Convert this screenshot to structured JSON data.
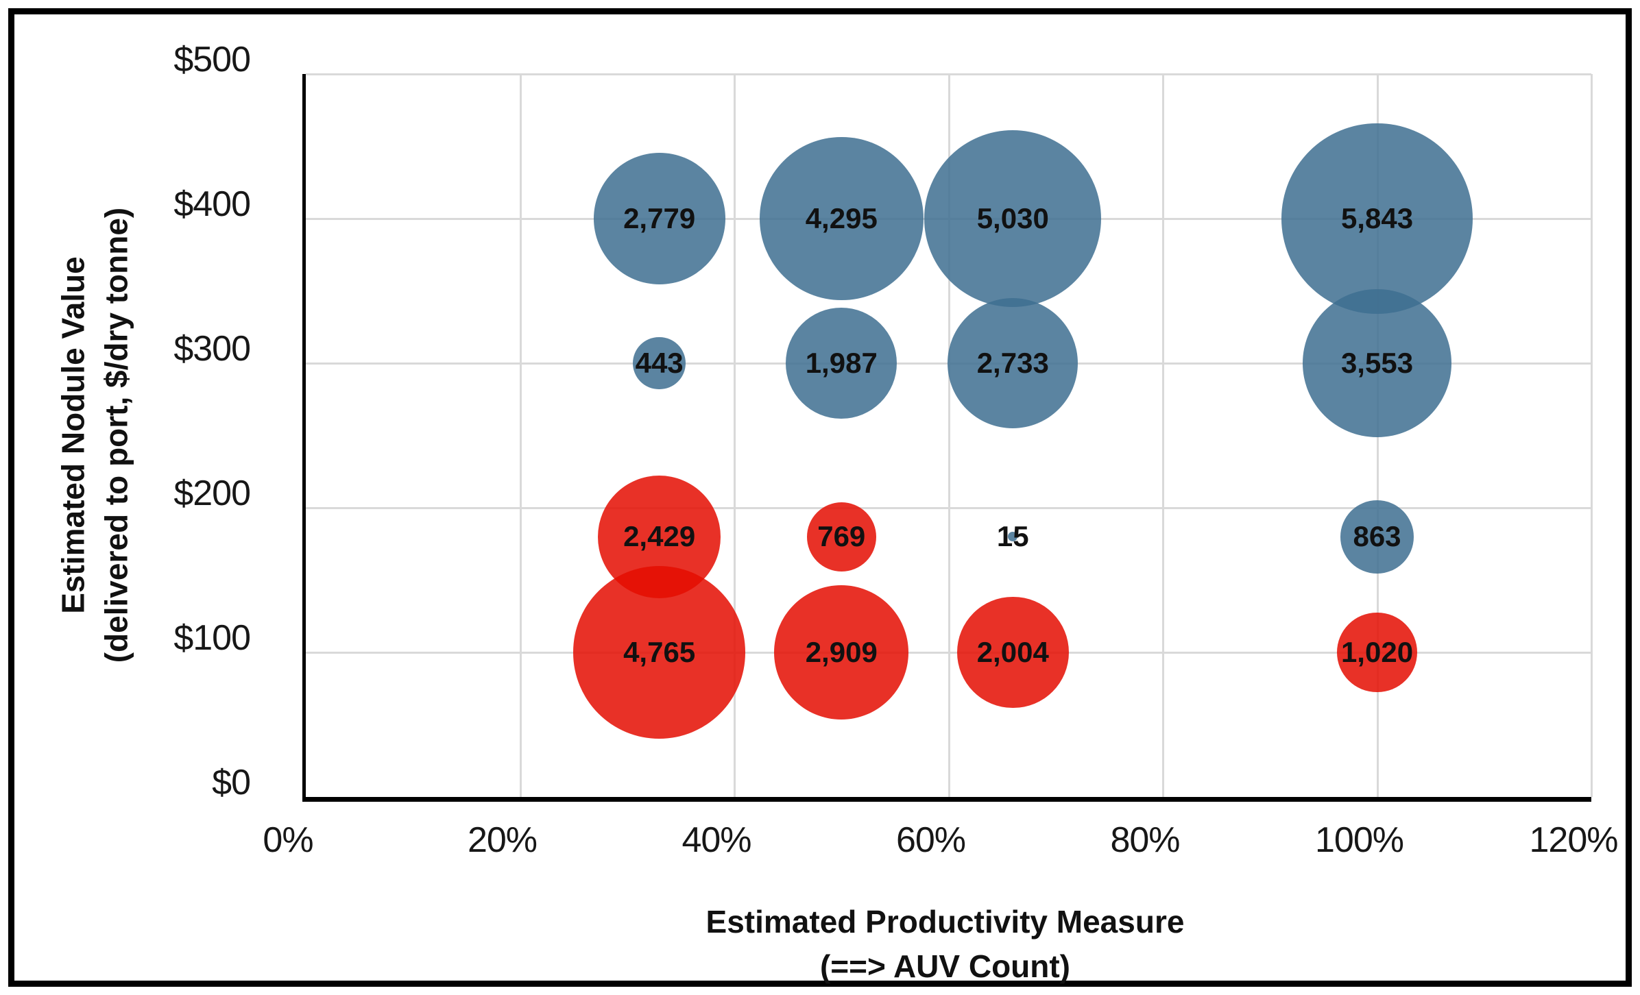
{
  "chart_data": {
    "type": "bubble",
    "xlabel_line1": "Estimated Productivity Measure",
    "xlabel_line2": "(==> AUV Count)",
    "ylabel_line1": "Estimated Nodule Value",
    "ylabel_line2": "(delivered to port, $/dry tonne)",
    "xlim": [
      0,
      120
    ],
    "ylim": [
      0,
      500
    ],
    "grid": true,
    "x_ticks": [
      {
        "value": 0,
        "label": "0%"
      },
      {
        "value": 20,
        "label": "20%"
      },
      {
        "value": 40,
        "label": "40%"
      },
      {
        "value": 60,
        "label": "60%"
      },
      {
        "value": 80,
        "label": "80%"
      },
      {
        "value": 100,
        "label": "100%"
      },
      {
        "value": 120,
        "label": "120%"
      }
    ],
    "y_ticks": [
      {
        "value": 0,
        "label": "$0"
      },
      {
        "value": 100,
        "label": "$100"
      },
      {
        "value": 200,
        "label": "$200"
      },
      {
        "value": 300,
        "label": "$300"
      },
      {
        "value": 400,
        "label": "$400"
      },
      {
        "value": 500,
        "label": "$500"
      }
    ],
    "series": [
      {
        "name": "blue-bubbles",
        "color": "#3e6e90",
        "opacity": 0.85,
        "points": [
          {
            "x": 33,
            "y": 400,
            "value": 2779,
            "label": "2,779"
          },
          {
            "x": 50,
            "y": 400,
            "value": 4295,
            "label": "4,295"
          },
          {
            "x": 66,
            "y": 400,
            "value": 5030,
            "label": "5,030"
          },
          {
            "x": 100,
            "y": 400,
            "value": 5843,
            "label": "5,843"
          },
          {
            "x": 33,
            "y": 300,
            "value": 443,
            "label": "443"
          },
          {
            "x": 50,
            "y": 300,
            "value": 1987,
            "label": "1,987"
          },
          {
            "x": 66,
            "y": 300,
            "value": 2733,
            "label": "2,733"
          },
          {
            "x": 100,
            "y": 300,
            "value": 3553,
            "label": "3,553"
          },
          {
            "x": 66,
            "y": 180,
            "value": 15,
            "label": "15"
          },
          {
            "x": 100,
            "y": 180,
            "value": 863,
            "label": "863"
          }
        ]
      },
      {
        "name": "red-bubbles",
        "color": "#e40d01",
        "opacity": 0.85,
        "points": [
          {
            "x": 33,
            "y": 180,
            "value": 2429,
            "label": "2,429"
          },
          {
            "x": 50,
            "y": 180,
            "value": 769,
            "label": "769"
          },
          {
            "x": 33,
            "y": 100,
            "value": 4765,
            "label": "4,765"
          },
          {
            "x": 50,
            "y": 100,
            "value": 2909,
            "label": "2,909"
          },
          {
            "x": 66,
            "y": 100,
            "value": 2004,
            "label": "2,004"
          },
          {
            "x": 100,
            "y": 100,
            "value": 1020,
            "label": "1,020"
          }
        ]
      }
    ],
    "colors": {
      "blue_displayed": "#5b87a3",
      "red_displayed": "#e83127",
      "gridline": "#d9d9d9",
      "axis": "#000000",
      "frame": "#000000",
      "label_text": "#111111"
    }
  }
}
